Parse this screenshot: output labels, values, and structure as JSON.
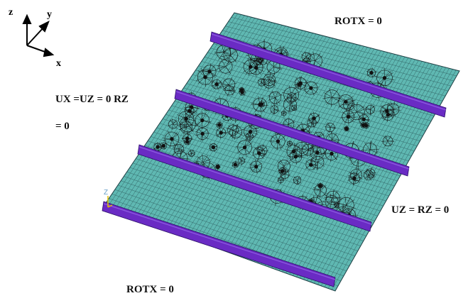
{
  "axes": {
    "z": "z",
    "y": "y",
    "x": "x"
  },
  "node_marker": "Z",
  "labels": {
    "top": "ROTX = 0",
    "left_line1": "UX =UZ = 0 RZ",
    "left_line2": "= 0",
    "right": "UZ = RZ = 0",
    "bottom": "ROTX = 0"
  },
  "colors": {
    "plate": "#5fb8b2",
    "mesh": "#1e3f44",
    "stiffener": "#6a2bc4",
    "stiffener_edge": "#2a0f66",
    "damage": "#111111"
  }
}
